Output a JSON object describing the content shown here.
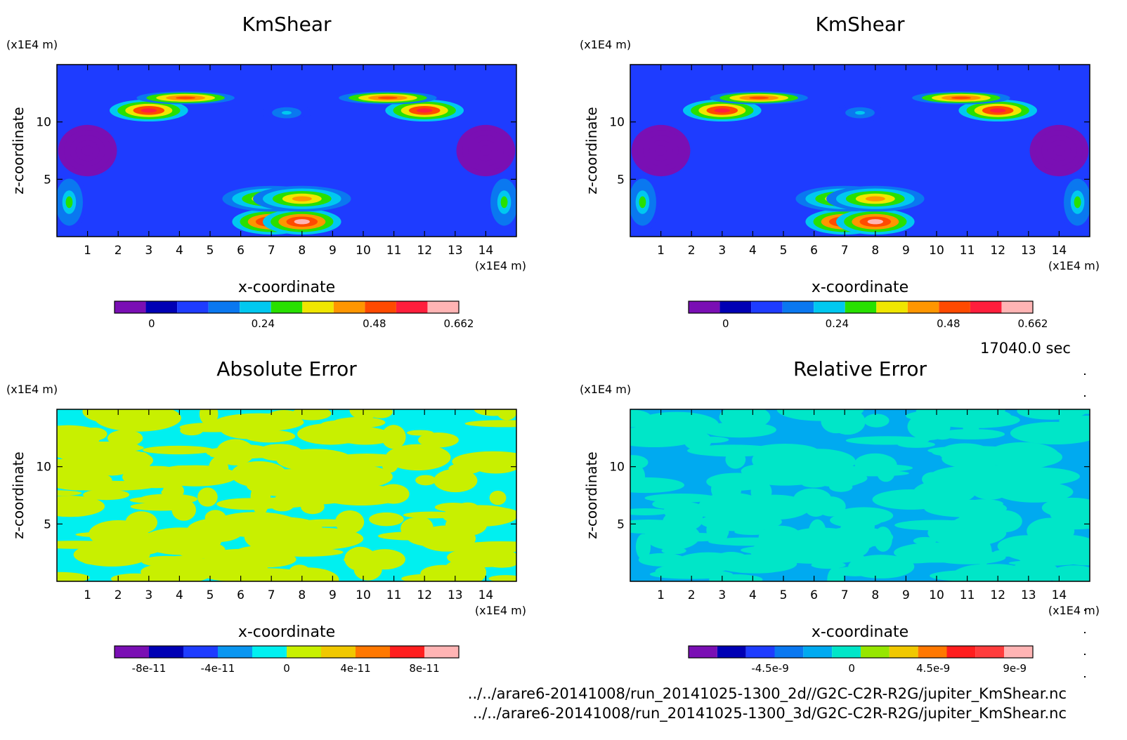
{
  "figure": {
    "time_label": "17040.0 sec",
    "file_path_1": "../../arare6-20141008/run_20141025-1300_2d//G2C-C2R-R2G/jupiter_KmShear.nc",
    "file_path_2": "../../arare6-20141008/run_20141025-1300_3d/G2C-C2R-R2G/jupiter_KmShear.nc"
  },
  "chart_data": [
    {
      "type": "heatmap",
      "title": "KmShear",
      "xlabel": "x-coordinate",
      "ylabel": "z-coordinate",
      "x_unit": "(x1E4 m)",
      "y_unit": "(x1E4 m)",
      "xlim": [
        0,
        15
      ],
      "ylim": [
        0,
        15
      ],
      "x_ticks": [
        1,
        2,
        3,
        4,
        5,
        6,
        7,
        8,
        9,
        10,
        11,
        12,
        13,
        14
      ],
      "y_ticks": [
        5,
        10
      ],
      "background": "#1e3cff",
      "features": [
        {
          "x": 3.0,
          "z": 11.0,
          "rx": 0.8,
          "rz": 0.6,
          "v": 0.55
        },
        {
          "x": 12.0,
          "z": 11.0,
          "rx": 0.8,
          "rz": 0.6,
          "v": 0.55
        },
        {
          "x": 4.2,
          "z": 12.1,
          "rx": 1.0,
          "rz": 0.35,
          "v": 0.52
        },
        {
          "x": 10.8,
          "z": 12.1,
          "rx": 1.0,
          "rz": 0.35,
          "v": 0.52
        },
        {
          "x": 7.5,
          "z": 10.8,
          "rx": 0.5,
          "rz": 0.5,
          "v": 0.2
        },
        {
          "x": 7.0,
          "z": 1.3,
          "rx": 0.8,
          "rz": 0.7,
          "v": 0.62
        },
        {
          "x": 8.0,
          "z": 1.3,
          "rx": 0.8,
          "rz": 0.7,
          "v": 0.62
        },
        {
          "x": 7.0,
          "z": 3.3,
          "rx": 1.0,
          "rz": 0.7,
          "v": 0.4
        },
        {
          "x": 8.0,
          "z": 3.3,
          "rx": 1.0,
          "rz": 0.7,
          "v": 0.4
        },
        {
          "x": 0.4,
          "z": 3.0,
          "rx": 0.35,
          "rz": 1.6,
          "v": 0.28
        },
        {
          "x": 14.6,
          "z": 3.0,
          "rx": 0.35,
          "rz": 1.6,
          "v": 0.28
        },
        {
          "x": 1.0,
          "z": 7.5,
          "rx": 0.6,
          "rz": 1.4,
          "v": -0.05
        },
        {
          "x": 14.0,
          "z": 7.5,
          "rx": 0.6,
          "rz": 1.4,
          "v": -0.05
        }
      ],
      "colorbar": {
        "ticks": [
          "0",
          "0.24",
          "0.48",
          "0.662"
        ],
        "tick_values": [
          0,
          0.24,
          0.48,
          0.662
        ],
        "min": -0.08,
        "max": 0.662,
        "colors": [
          "#7a0fb4",
          "#0000b4",
          "#1e3cff",
          "#0a78f0",
          "#00c8f0",
          "#28e000",
          "#f0e600",
          "#ff9600",
          "#ff4a00",
          "#ff1e3c",
          "#ffb4b4"
        ]
      }
    },
    {
      "type": "heatmap",
      "title": "KmShear",
      "xlabel": "x-coordinate",
      "ylabel": "z-coordinate",
      "x_unit": "(x1E4 m)",
      "y_unit": "(x1E4 m)",
      "xlim": [
        0,
        15
      ],
      "ylim": [
        0,
        15
      ],
      "x_ticks": [
        1,
        2,
        3,
        4,
        5,
        6,
        7,
        8,
        9,
        10,
        11,
        12,
        13,
        14
      ],
      "y_ticks": [
        5,
        10
      ],
      "background": "#1e3cff",
      "features": [
        {
          "x": 3.0,
          "z": 11.0,
          "rx": 0.8,
          "rz": 0.6,
          "v": 0.55
        },
        {
          "x": 12.0,
          "z": 11.0,
          "rx": 0.8,
          "rz": 0.6,
          "v": 0.55
        },
        {
          "x": 4.2,
          "z": 12.1,
          "rx": 1.0,
          "rz": 0.35,
          "v": 0.52
        },
        {
          "x": 10.8,
          "z": 12.1,
          "rx": 1.0,
          "rz": 0.35,
          "v": 0.52
        },
        {
          "x": 7.5,
          "z": 10.8,
          "rx": 0.5,
          "rz": 0.5,
          "v": 0.2
        },
        {
          "x": 7.0,
          "z": 1.3,
          "rx": 0.8,
          "rz": 0.7,
          "v": 0.62
        },
        {
          "x": 8.0,
          "z": 1.3,
          "rx": 0.8,
          "rz": 0.7,
          "v": 0.62
        },
        {
          "x": 7.0,
          "z": 3.3,
          "rx": 1.0,
          "rz": 0.7,
          "v": 0.4
        },
        {
          "x": 8.0,
          "z": 3.3,
          "rx": 1.0,
          "rz": 0.7,
          "v": 0.4
        },
        {
          "x": 0.4,
          "z": 3.0,
          "rx": 0.35,
          "rz": 1.6,
          "v": 0.28
        },
        {
          "x": 14.6,
          "z": 3.0,
          "rx": 0.35,
          "rz": 1.6,
          "v": 0.28
        },
        {
          "x": 1.0,
          "z": 7.5,
          "rx": 0.6,
          "rz": 1.4,
          "v": -0.05
        },
        {
          "x": 14.0,
          "z": 7.5,
          "rx": 0.6,
          "rz": 1.4,
          "v": -0.05
        }
      ],
      "colorbar": {
        "ticks": [
          "0",
          "0.24",
          "0.48",
          "0.662"
        ],
        "tick_values": [
          0,
          0.24,
          0.48,
          0.662
        ],
        "min": -0.08,
        "max": 0.662,
        "colors": [
          "#7a0fb4",
          "#0000b4",
          "#1e3cff",
          "#0a78f0",
          "#00c8f0",
          "#28e000",
          "#f0e600",
          "#ff9600",
          "#ff4a00",
          "#ff1e3c",
          "#ffb4b4"
        ]
      }
    },
    {
      "type": "heatmap",
      "title": "Absolute Error",
      "xlabel": "x-coordinate",
      "ylabel": "z-coordinate",
      "x_unit": "(x1E4 m)",
      "y_unit": "(x1E4 m)",
      "xlim": [
        0,
        15
      ],
      "ylim": [
        0,
        15
      ],
      "x_ticks": [
        1,
        2,
        3,
        4,
        5,
        6,
        7,
        8,
        9,
        10,
        11,
        12,
        13,
        14
      ],
      "y_ticks": [
        5,
        10
      ],
      "background": "#00f0f0",
      "pattern": {
        "color": "#c8f000",
        "seed": 7
      },
      "colorbar": {
        "ticks": [
          "-8e-11",
          "-4e-11",
          "0",
          "4e-11",
          "8e-11"
        ],
        "tick_values": [
          -8e-11,
          -4e-11,
          0,
          4e-11,
          8e-11
        ],
        "min": -1e-10,
        "max": 1e-10,
        "colors": [
          "#7a0fb4",
          "#0000b4",
          "#1e3cff",
          "#0a96f0",
          "#00f0f0",
          "#c8f000",
          "#f0c800",
          "#ff7800",
          "#ff1e1e",
          "#ffb4b4"
        ]
      }
    },
    {
      "type": "heatmap",
      "title": "Relative Error",
      "xlabel": "x-coordinate",
      "ylabel": "z-coordinate",
      "x_unit": "(x1E4 m)",
      "y_unit": "(x1E4 m)",
      "xlim": [
        0,
        15
      ],
      "ylim": [
        0,
        15
      ],
      "x_ticks": [
        1,
        2,
        3,
        4,
        5,
        6,
        7,
        8,
        9,
        10,
        11,
        12,
        13,
        14
      ],
      "y_ticks": [
        5,
        10
      ],
      "background": "#00aaf0",
      "pattern": {
        "color": "#00e6c8",
        "seed": 13
      },
      "colorbar": {
        "ticks": [
          "-4.5e-9",
          "0",
          "4.5e-9",
          "9e-9"
        ],
        "tick_values": [
          -4.5e-09,
          0,
          4.5e-09,
          9e-09
        ],
        "min": -9e-09,
        "max": 1e-08,
        "colors": [
          "#7a0fb4",
          "#0000b4",
          "#1e3cff",
          "#0a78f0",
          "#00aaf0",
          "#00e6c8",
          "#96e600",
          "#f0c800",
          "#ff7800",
          "#ff1e1e",
          "#ff3c3c",
          "#ffb4b4"
        ]
      }
    }
  ]
}
